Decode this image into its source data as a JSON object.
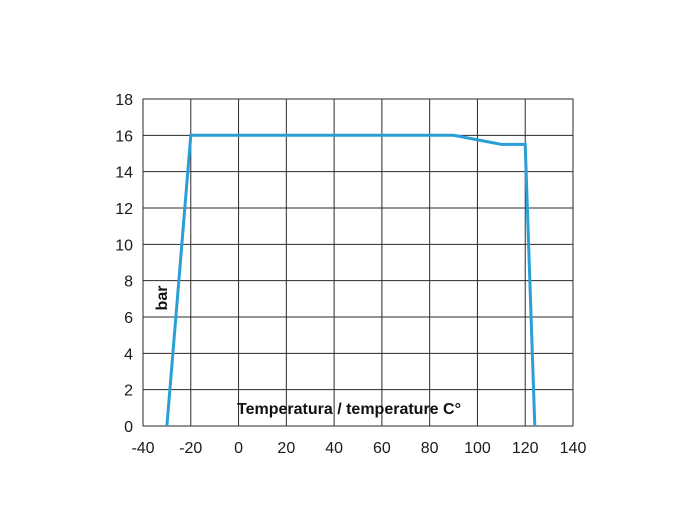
{
  "chart_data": {
    "type": "line",
    "xlabel": "Temperatura / temperature C°",
    "ylabel": "bar",
    "xlim": [
      -40,
      140
    ],
    "ylim": [
      0,
      18
    ],
    "x_ticks": [
      -40,
      -20,
      0,
      20,
      40,
      60,
      80,
      100,
      120,
      140
    ],
    "y_ticks": [
      0,
      2,
      4,
      6,
      8,
      10,
      12,
      14,
      16,
      18
    ],
    "grid": true,
    "legend": "none",
    "series": [
      {
        "color": "#2a9fd6",
        "points": [
          {
            "x": -30,
            "y": 0
          },
          {
            "x": -20,
            "y": 16
          },
          {
            "x": 90,
            "y": 16
          },
          {
            "x": 110,
            "y": 15.5
          },
          {
            "x": 120,
            "y": 15.5
          },
          {
            "x": 124,
            "y": 0
          }
        ]
      }
    ]
  }
}
